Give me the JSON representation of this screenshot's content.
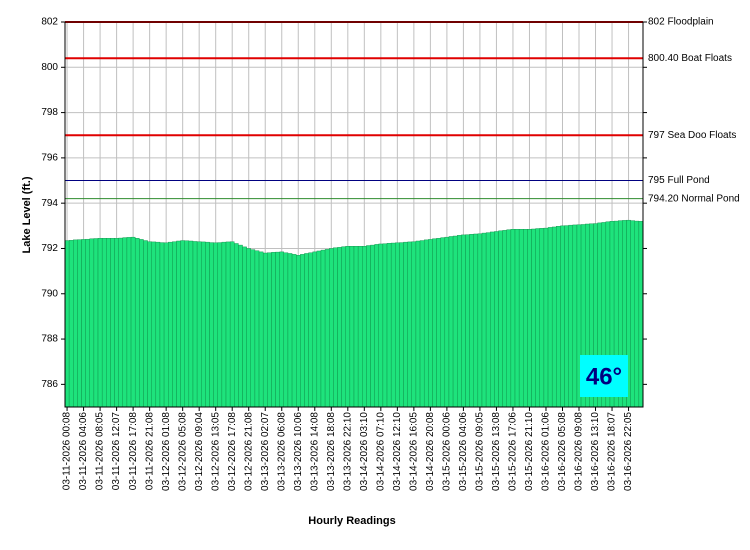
{
  "chart_data": {
    "type": "bar",
    "y_label": "Lake Level (ft.)",
    "x_label": "Hourly Readings",
    "annotation": "46°",
    "color": "#1ee37c",
    "grid": true,
    "ylim": [
      785,
      802
    ],
    "yticks": [
      786,
      788,
      790,
      792,
      794,
      796,
      798,
      800,
      802
    ],
    "reference_lines": [
      {
        "value": 802,
        "label": "802 Floodplain",
        "color": "#e00000"
      },
      {
        "value": 800.4,
        "label": "800.40 Boat Floats",
        "color": "#e00000"
      },
      {
        "value": 797,
        "label": "797 Sea Doo Floats",
        "color": "#e00000"
      },
      {
        "value": 795,
        "label": "795 Full Pond",
        "color": "#000080"
      },
      {
        "value": 794.2,
        "label": "794.20 Normal Pond",
        "color": "#2e8b2e"
      }
    ],
    "categories": [
      "03-11-2026 00:08",
      null,
      null,
      null,
      "03-11-2026 04:06",
      null,
      null,
      null,
      "03-11-2026 08:05",
      null,
      null,
      null,
      "03-11-2026 12:07",
      null,
      null,
      null,
      "03-11-2026 17:08",
      null,
      null,
      null,
      "03-11-2026 21:08",
      null,
      null,
      null,
      "03-12-2026 01:08",
      null,
      null,
      null,
      "03-12-2026 05:08",
      null,
      null,
      null,
      "03-12-2026 09:04",
      null,
      null,
      null,
      "03-12-2026 13:05",
      null,
      null,
      null,
      "03-12-2026 17:08",
      null,
      null,
      null,
      "03-12-2026 21:08",
      null,
      null,
      null,
      "03-13-2026 02:07",
      null,
      null,
      null,
      "03-13-2026 06:08",
      null,
      null,
      null,
      "03-13-2026 10:06",
      null,
      null,
      null,
      "03-13-2026 14:08",
      null,
      null,
      null,
      "03-13-2026 18:08",
      null,
      null,
      null,
      "03-13-2026 22:10",
      null,
      null,
      null,
      "03-14-2026 03:10",
      null,
      null,
      null,
      "03-14-2026 07:10",
      null,
      null,
      null,
      "03-14-2026 12:10",
      null,
      null,
      null,
      "03-14-2026 16:05",
      null,
      null,
      null,
      "03-14-2026 20:08",
      null,
      null,
      null,
      "03-15-2026 00:06",
      null,
      null,
      null,
      "03-15-2026 04:06",
      null,
      null,
      null,
      "03-15-2026 09:05",
      null,
      null,
      null,
      "03-15-2026 13:08",
      null,
      null,
      null,
      "03-15-2026 17:06",
      null,
      null,
      null,
      "03-15-2026 21:10",
      null,
      null,
      null,
      "03-16-2026 01:06",
      null,
      null,
      null,
      "03-16-2026 05:08",
      null,
      null,
      null,
      "03-16-2026 09:08",
      null,
      null,
      null,
      "03-16-2026 13:10",
      null,
      null,
      null,
      "03-16-2026 18:07",
      null,
      null,
      null,
      "03-16-2026 22:05",
      null,
      null,
      null
    ],
    "values": [
      792.35,
      792.36,
      792.38,
      792.39,
      792.4,
      792.41,
      792.43,
      792.44,
      792.45,
      792.45,
      792.45,
      792.45,
      792.45,
      792.46,
      792.48,
      792.49,
      792.5,
      792.45,
      792.4,
      792.35,
      792.3,
      792.29,
      792.28,
      792.26,
      792.25,
      792.28,
      792.3,
      792.33,
      792.35,
      792.34,
      792.33,
      792.31,
      792.3,
      792.29,
      792.28,
      792.26,
      792.25,
      792.26,
      792.28,
      792.29,
      792.3,
      792.22,
      792.15,
      792.07,
      792.0,
      791.95,
      791.9,
      791.85,
      791.8,
      791.81,
      791.83,
      791.84,
      791.85,
      791.81,
      791.78,
      791.74,
      791.7,
      791.74,
      791.78,
      791.81,
      791.85,
      791.89,
      791.93,
      791.96,
      792.0,
      792.03,
      792.05,
      792.08,
      792.1,
      792.1,
      792.1,
      792.1,
      792.1,
      792.13,
      792.15,
      792.18,
      792.2,
      792.21,
      792.23,
      792.24,
      792.25,
      792.26,
      792.28,
      792.29,
      792.3,
      792.33,
      792.35,
      792.38,
      792.4,
      792.43,
      792.45,
      792.48,
      792.5,
      792.53,
      792.55,
      792.58,
      792.6,
      792.61,
      792.63,
      792.64,
      792.65,
      792.68,
      792.7,
      792.73,
      792.75,
      792.78,
      792.8,
      792.83,
      792.85,
      792.85,
      792.85,
      792.85,
      792.85,
      792.86,
      792.88,
      792.89,
      792.9,
      792.93,
      792.95,
      792.98,
      793.0,
      793.01,
      793.03,
      793.04,
      793.05,
      793.06,
      793.08,
      793.09,
      793.1,
      793.13,
      793.15,
      793.18,
      793.2,
      793.21,
      793.23,
      793.24,
      793.25,
      793.23,
      793.21,
      793.2
    ]
  }
}
